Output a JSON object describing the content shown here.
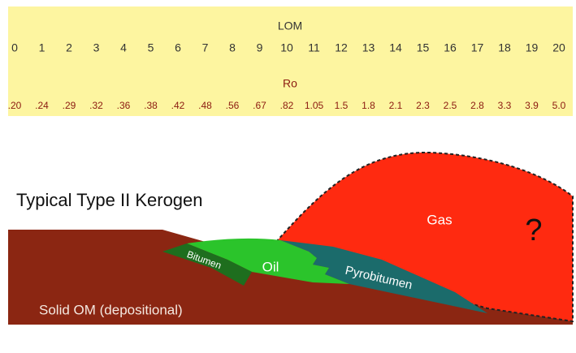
{
  "scale": {
    "lom_title": "LOM",
    "lom_values": [
      0,
      1,
      2,
      3,
      4,
      5,
      6,
      7,
      8,
      9,
      10,
      11,
      12,
      13,
      14,
      15,
      16,
      17,
      18,
      19,
      20
    ],
    "ro_title": "Ro",
    "ro_values": [
      ".20",
      ".24",
      ".29",
      ".32",
      ".36",
      ".38",
      ".42",
      ".48",
      ".56",
      ".67",
      ".82",
      "1.05",
      "1.5",
      "1.8",
      "2.1",
      "2.3",
      "2.5",
      "2.8",
      "3.3",
      "3.9",
      "5.0"
    ]
  },
  "diagram": {
    "title": "Typical Type II Kerogen",
    "gas": "Gas",
    "unknown": "?",
    "oil": "Oil",
    "bitumen": "Bitumen",
    "pyrobitumen": "Pyrobitumen",
    "solid_om": "Solid OM (depositional)"
  }
}
